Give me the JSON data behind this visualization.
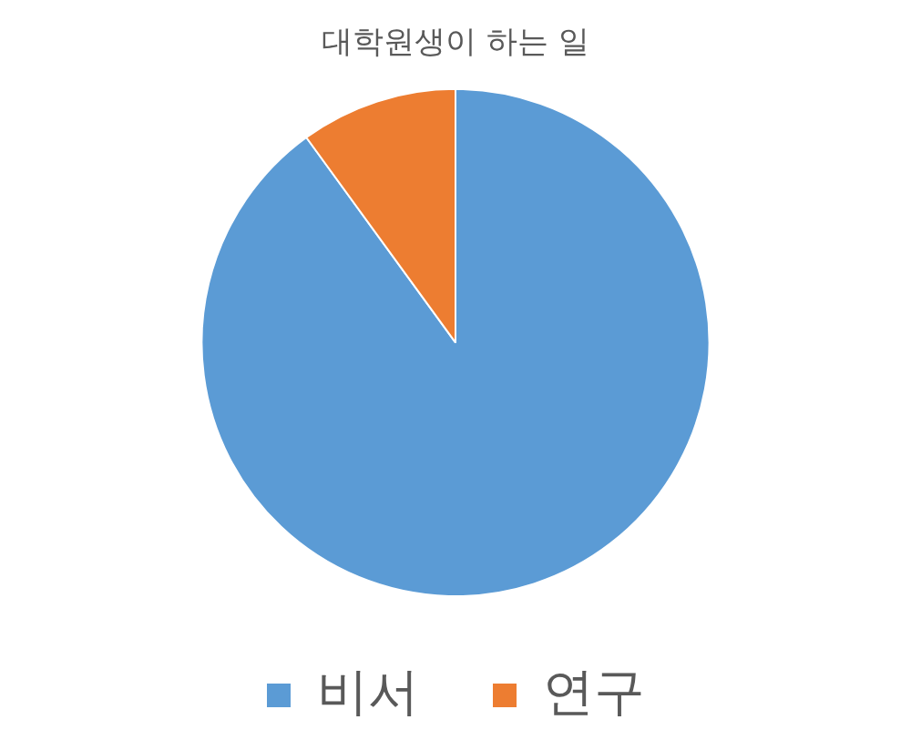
{
  "chart_data": {
    "type": "pie",
    "title": "대학원생이 하는 일",
    "categories": [
      "비서",
      "연구"
    ],
    "values": [
      90,
      10
    ],
    "colors": [
      "#5b9bd5",
      "#ed7d31"
    ],
    "legend": "bottom"
  }
}
